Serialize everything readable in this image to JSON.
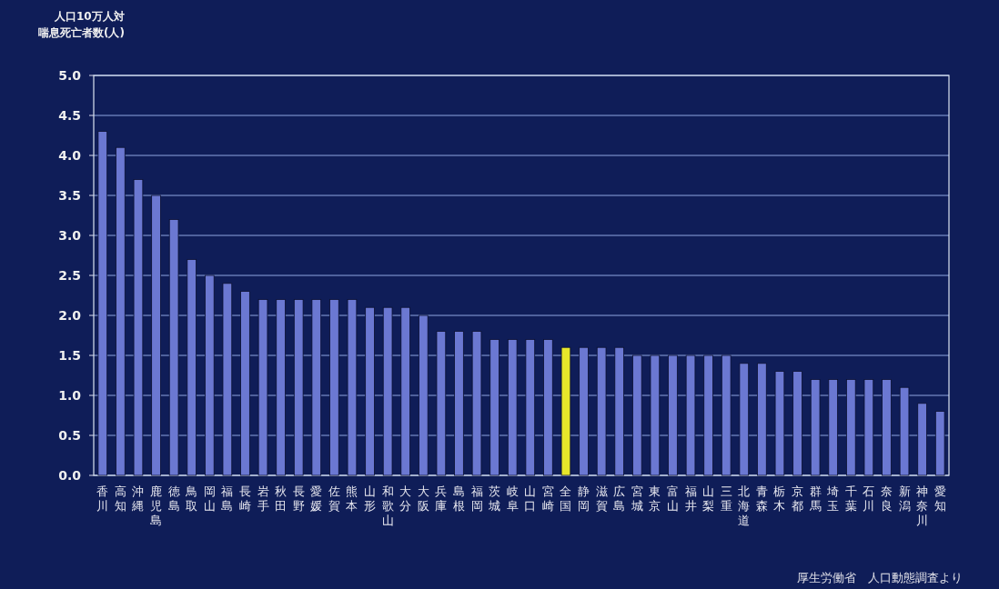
{
  "chart_data": {
    "type": "bar",
    "title": "人口10万人対",
    "ylabel": "喘息死亡者数(人)",
    "categories": [
      "香川",
      "高知",
      "沖縄",
      "鹿児島",
      "徳島",
      "鳥取",
      "岡山",
      "福島",
      "長崎",
      "岩手",
      "秋田",
      "長野",
      "愛媛",
      "佐賀",
      "熊本",
      "山形",
      "和歌山",
      "大分",
      "大阪",
      "兵庫",
      "島根",
      "福岡",
      "茨城",
      "岐阜",
      "山口",
      "宮崎",
      "全国",
      "静岡",
      "滋賀",
      "広島",
      "宮城",
      "東京",
      "富山",
      "福井",
      "山梨",
      "三重",
      "北海道",
      "青森",
      "栃木",
      "京都",
      "群馬",
      "埼玉",
      "千葉",
      "石川",
      "奈良",
      "新潟",
      "神奈川",
      "愛知"
    ],
    "values": [
      4.3,
      4.1,
      3.7,
      3.5,
      3.2,
      2.7,
      2.5,
      2.4,
      2.3,
      2.2,
      2.2,
      2.2,
      2.2,
      2.2,
      2.2,
      2.1,
      2.1,
      2.1,
      2.0,
      1.8,
      1.8,
      1.8,
      1.7,
      1.7,
      1.7,
      1.7,
      1.6,
      1.6,
      1.6,
      1.6,
      1.5,
      1.5,
      1.5,
      1.5,
      1.5,
      1.5,
      1.4,
      1.4,
      1.3,
      1.3,
      1.2,
      1.2,
      1.2,
      1.2,
      1.2,
      1.1,
      0.9,
      0.8
    ],
    "colors": [
      "#6b78d2",
      "#6b78d2",
      "#6b78d2",
      "#6b78d2",
      "#6b78d2",
      "#6b78d2",
      "#6b78d2",
      "#6b78d2",
      "#6b78d2",
      "#6b78d2",
      "#6b78d2",
      "#6b78d2",
      "#6b78d2",
      "#6b78d2",
      "#6b78d2",
      "#6b78d2",
      "#6b78d2",
      "#6b78d2",
      "#6b78d2",
      "#6b78d2",
      "#6b78d2",
      "#6b78d2",
      "#6b78d2",
      "#6b78d2",
      "#6b78d2",
      "#6b78d2",
      "#e6e62a",
      "#6b78d2",
      "#6b78d2",
      "#6b78d2",
      "#6b78d2",
      "#6b78d2",
      "#6b78d2",
      "#6b78d2",
      "#6b78d2",
      "#6b78d2",
      "#6b78d2",
      "#6b78d2",
      "#6b78d2",
      "#6b78d2",
      "#6b78d2",
      "#6b78d2",
      "#6b78d2",
      "#6b78d2",
      "#6b78d2",
      "#6b78d2",
      "#6b78d2",
      "#6b78d2"
    ],
    "ylim": [
      0,
      5
    ],
    "yticks": [
      {
        "value": 0,
        "label": "0.0"
      },
      {
        "value": 0.5,
        "label": "0.5"
      },
      {
        "value": 1,
        "label": "1.0"
      },
      {
        "value": 1.5,
        "label": "1.5"
      },
      {
        "value": 2,
        "label": "2.0"
      },
      {
        "value": 2.5,
        "label": "2.5"
      },
      {
        "value": 3,
        "label": "3.0"
      },
      {
        "value": 3.5,
        "label": "3.5"
      },
      {
        "value": 4,
        "label": "4.0"
      },
      {
        "value": 4.5,
        "label": "4.5"
      },
      {
        "value": 5,
        "label": "5.0"
      }
    ],
    "grid": "y",
    "annotations": [
      "厚生労働省　人口動態調査より"
    ]
  }
}
